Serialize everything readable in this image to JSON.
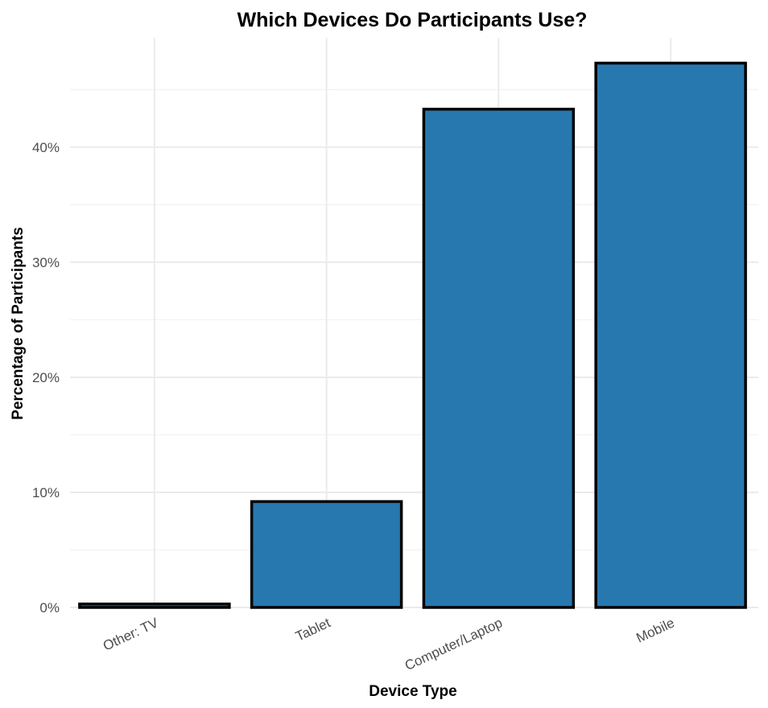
{
  "chart_data": {
    "type": "bar",
    "title": "Which Devices Do Participants Use?",
    "xlabel": "Device Type",
    "ylabel": "Percentage of Participants",
    "categories": [
      "Other: TV",
      "Tablet",
      "Computer/Laptop",
      "Mobile"
    ],
    "values": [
      0.3,
      9.2,
      43.3,
      47.3
    ],
    "ylim": [
      0,
      49.5
    ],
    "y_ticks": [
      0,
      10,
      20,
      30,
      40
    ],
    "y_tick_labels": [
      "0%",
      "10%",
      "20%",
      "30%",
      "40%"
    ],
    "y_tick_format": "percent",
    "grid": true,
    "legend": "none",
    "bar_fill_color": "#2878b0",
    "bar_outline_color": "#000000"
  }
}
